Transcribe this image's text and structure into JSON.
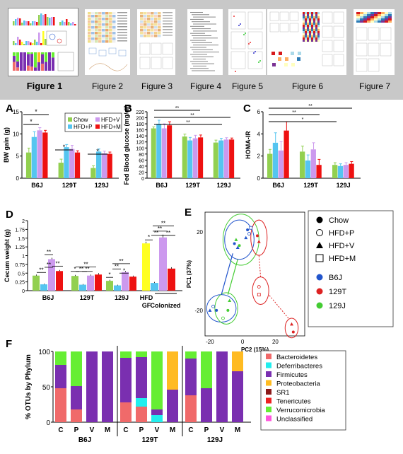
{
  "thumbnails": [
    {
      "label": "Figure 1",
      "selected": true
    },
    {
      "label": "Figure 2",
      "selected": false
    },
    {
      "label": "Figure 3",
      "selected": false
    },
    {
      "label": "Figure 4",
      "selected": false
    },
    {
      "label": "Figure 5",
      "selected": false
    },
    {
      "label": "Figure 6",
      "selected": false
    },
    {
      "label": "Figure 7",
      "selected": false
    }
  ],
  "colors": {
    "chow": "#92d050",
    "hfd_p": "#55c5f0",
    "hfd_v": "#cc99ee",
    "hfd_m": "#ee1111",
    "gf": "#ffff22",
    "b6j": "#2255cc",
    "t129": "#dd2222",
    "j129": "#44cc33",
    "phylum": {
      "Bacteroidetes": "#f06a6a",
      "Deferribacteres": "#22eeee",
      "Firmicutes": "#7a2fb0",
      "Proteobacteria": "#ffbb22",
      "SR1": "#8b1a1a",
      "Tenericutes": "#ee2222",
      "Verrucomicrobia": "#66ee33",
      "Unclassified": "#ff55dd"
    }
  },
  "panel_letters": {
    "a": "A",
    "b": "B",
    "c": "C",
    "d": "D",
    "e": "E",
    "f": "F"
  },
  "legend_top": {
    "chow": "Chow",
    "hfd_p": "HFD+P",
    "hfd_v": "HFD+V",
    "hfd_m": "HFD+M"
  },
  "chart_data": [
    {
      "id": "A",
      "type": "bar",
      "ylabel": "BW gain (g)",
      "ylim": [
        0,
        15
      ],
      "yticks": [
        0,
        5,
        10,
        15
      ],
      "categories": [
        "B6J",
        "129T",
        "129J"
      ],
      "series": [
        {
          "name": "Chow",
          "values": [
            5.8,
            3.5,
            2.3
          ],
          "err": [
            1.0,
            0.8,
            0.5
          ]
        },
        {
          "name": "HFD+P",
          "values": [
            9.3,
            7.0,
            6.0
          ],
          "err": [
            1.2,
            0.6,
            0.6
          ]
        },
        {
          "name": "HFD+V",
          "values": [
            10.8,
            6.6,
            5.6
          ],
          "err": [
            0.6,
            0.8,
            0.5
          ]
        },
        {
          "name": "HFD+M",
          "values": [
            10.3,
            5.8,
            5.5
          ],
          "err": [
            0.5,
            0.4,
            0.4
          ]
        }
      ],
      "significance": [
        "*",
        "*",
        "*",
        "*"
      ]
    },
    {
      "id": "B",
      "type": "bar",
      "ylabel": "Fed Blood glucose (mg/dl)",
      "ylim": [
        0,
        220
      ],
      "yticks": [
        0,
        20,
        40,
        60,
        80,
        100,
        120,
        140,
        160,
        180,
        200,
        220
      ],
      "categories": [
        "B6J",
        "129T",
        "129J"
      ],
      "series": [
        {
          "name": "Chow",
          "values": [
            165,
            138,
            118
          ],
          "err": [
            5,
            8,
            8
          ]
        },
        {
          "name": "HFD+P",
          "values": [
            180,
            125,
            125
          ],
          "err": [
            12,
            10,
            7
          ]
        },
        {
          "name": "HFD+V",
          "values": [
            165,
            132,
            128
          ],
          "err": [
            15,
            10,
            6
          ]
        },
        {
          "name": "HFD+M",
          "values": [
            175,
            135,
            128
          ],
          "err": [
            12,
            8,
            5
          ]
        }
      ],
      "significance": [
        "**",
        "**",
        "**"
      ]
    },
    {
      "id": "C",
      "type": "bar",
      "ylabel": "HOMA-IR",
      "ylim": [
        0,
        6
      ],
      "yticks": [
        0,
        2,
        4,
        6
      ],
      "categories": [
        "B6J",
        "129T",
        "129J"
      ],
      "series": [
        {
          "name": "Chow",
          "values": [
            2.2,
            2.4,
            1.2
          ],
          "err": [
            0.4,
            0.5,
            0.2
          ]
        },
        {
          "name": "HFD+P",
          "values": [
            3.2,
            1.6,
            1.1
          ],
          "err": [
            0.9,
            0.5,
            0.2
          ]
        },
        {
          "name": "HFD+V",
          "values": [
            2.5,
            2.6,
            1.2
          ],
          "err": [
            0.8,
            0.6,
            0.2
          ]
        },
        {
          "name": "HFD+M",
          "values": [
            4.3,
            1.2,
            1.3
          ],
          "err": [
            0.8,
            0.5,
            0.2
          ]
        }
      ],
      "significance": [
        "**",
        "**",
        "*"
      ]
    },
    {
      "id": "D",
      "type": "bar",
      "ylabel": "Cecum weight (g)",
      "ylim": [
        0,
        2.0
      ],
      "yticks": [
        0,
        0.25,
        0.5,
        0.75,
        1,
        1.25,
        1.5,
        1.75,
        2
      ],
      "ytick_labels": [
        "0",
        "0.25",
        "0.5",
        "0.75",
        "1",
        "1.25",
        "1.5",
        "1.75",
        "2"
      ],
      "categories": [
        "B6J",
        "129T",
        "129J"
      ],
      "series": [
        {
          "name": "Chow",
          "values": [
            0.43,
            0.42,
            0.28
          ],
          "err": [
            0.03,
            0.03,
            0.03
          ]
        },
        {
          "name": "HFD+P",
          "values": [
            0.18,
            0.17,
            0.15
          ],
          "err": [
            0.02,
            0.02,
            0.02
          ]
        },
        {
          "name": "HFD+V",
          "values": [
            0.9,
            0.43,
            0.53
          ],
          "err": [
            0.04,
            0.03,
            0.03
          ]
        },
        {
          "name": "HFD+M",
          "values": [
            0.56,
            0.46,
            0.4
          ],
          "err": [
            0.03,
            0.04,
            0.03
          ]
        }
      ],
      "extra_group": {
        "label": "HFD",
        "sublabel": "GF",
        "colonized": "Colonized",
        "values": [
          1.35,
          0.22,
          1.52,
          0.63
        ],
        "err": [
          0.05,
          0.03,
          0.08,
          0.04
        ]
      },
      "significance": [
        "**",
        "**",
        "**",
        "**",
        "*",
        "**",
        "**",
        "**",
        "*",
        "**",
        "*",
        "**",
        "**",
        "*",
        "**",
        "**",
        "**"
      ]
    },
    {
      "id": "E",
      "type": "scatter",
      "xlabel": "PC2 (15%)",
      "ylabel": "PC1 (37%)",
      "xlim": [
        -23,
        38
      ],
      "ylim": [
        -33,
        30
      ],
      "xticks": [
        -20,
        0,
        20
      ],
      "yticks": [
        -20,
        20
      ],
      "points": [
        {
          "x": 3,
          "y": 21,
          "g": "b6j",
          "d": "chow"
        },
        {
          "x": 4,
          "y": 19,
          "g": "b6j",
          "d": "hfd_p"
        },
        {
          "x": 2,
          "y": 17,
          "g": "b6j",
          "d": "hfd_v"
        },
        {
          "x": 5,
          "y": 22,
          "g": "b6j",
          "d": "hfd_m"
        },
        {
          "x": -5,
          "y": 14,
          "g": "b6j",
          "d": "chow"
        },
        {
          "x": -3,
          "y": 12,
          "g": "b6j",
          "d": "hfd_v"
        },
        {
          "x": -18,
          "y": -18,
          "g": "b6j",
          "d": "hfd_p"
        },
        {
          "x": -20,
          "y": -20,
          "g": "b6j",
          "d": "hfd_v"
        },
        {
          "x": -16,
          "y": -20,
          "g": "b6j",
          "d": "chow"
        },
        {
          "x": 9,
          "y": 18,
          "g": "t129",
          "d": "chow"
        },
        {
          "x": 10,
          "y": 15,
          "g": "t129",
          "d": "hfd_v"
        },
        {
          "x": 10,
          "y": -8,
          "g": "t129",
          "d": "hfd_p"
        },
        {
          "x": 10,
          "y": -12,
          "g": "t129",
          "d": "hfd_m"
        },
        {
          "x": 30,
          "y": -27,
          "g": "t129",
          "d": "hfd_v"
        },
        {
          "x": 31,
          "y": -31,
          "g": "t129",
          "d": "chow"
        },
        {
          "x": -4,
          "y": 16,
          "g": "j129",
          "d": "hfd_v"
        },
        {
          "x": -2,
          "y": 13,
          "g": "j129",
          "d": "chow"
        },
        {
          "x": -8,
          "y": -15,
          "g": "j129",
          "d": "hfd_v"
        },
        {
          "x": -9,
          "y": -20,
          "g": "j129",
          "d": "chow"
        },
        {
          "x": -12,
          "y": -24,
          "g": "j129",
          "d": "hfd_p"
        }
      ],
      "legend_shapes": [
        {
          "shape": "filled-circle",
          "label": "Chow"
        },
        {
          "shape": "open-circle",
          "label": "HFD+P"
        },
        {
          "shape": "triangle",
          "label": "HFD+V"
        },
        {
          "shape": "square",
          "label": "HFD+M"
        }
      ],
      "legend_strains": [
        {
          "color": "b6j",
          "label": "B6J"
        },
        {
          "color": "t129",
          "label": "129T"
        },
        {
          "color": "j129",
          "label": "129J"
        }
      ]
    },
    {
      "id": "F",
      "type": "bar",
      "stacked": true,
      "ylabel": "% OTUs by Phylum",
      "ylim": [
        0,
        100
      ],
      "yticks": [
        0,
        50,
        100
      ],
      "groups": [
        "B6J",
        "129T",
        "129J"
      ],
      "diets": [
        "C",
        "P",
        "V",
        "M"
      ],
      "phyla": [
        "Bacteroidetes",
        "Deferribacteres",
        "Firmicutes",
        "Proteobacteria",
        "SR1",
        "Tenericutes",
        "Verrucomicrobia",
        "Unclassified"
      ],
      "bars": [
        [
          [
            48,
            0,
            33,
            0,
            0,
            0,
            19,
            0
          ],
          [
            18,
            0,
            33,
            0,
            0,
            0,
            49,
            0
          ],
          [
            0,
            0,
            100,
            0,
            0,
            0,
            0,
            0
          ],
          [
            0,
            0,
            100,
            0,
            0,
            0,
            0,
            0
          ]
        ],
        [
          [
            28,
            0,
            63,
            0,
            0,
            0,
            9,
            0
          ],
          [
            22,
            12,
            58,
            0,
            0,
            0,
            8,
            0
          ],
          [
            0,
            10,
            8,
            0,
            0,
            0,
            82,
            0
          ],
          [
            0,
            0,
            46,
            54,
            0,
            0,
            0,
            0
          ]
        ],
        [
          [
            38,
            0,
            52,
            0,
            0,
            0,
            10,
            0
          ],
          [
            0,
            0,
            48,
            0,
            0,
            0,
            52,
            0
          ],
          [
            0,
            0,
            100,
            0,
            0,
            0,
            0,
            0
          ],
          [
            0,
            0,
            72,
            28,
            0,
            0,
            0,
            0
          ]
        ]
      ]
    }
  ]
}
